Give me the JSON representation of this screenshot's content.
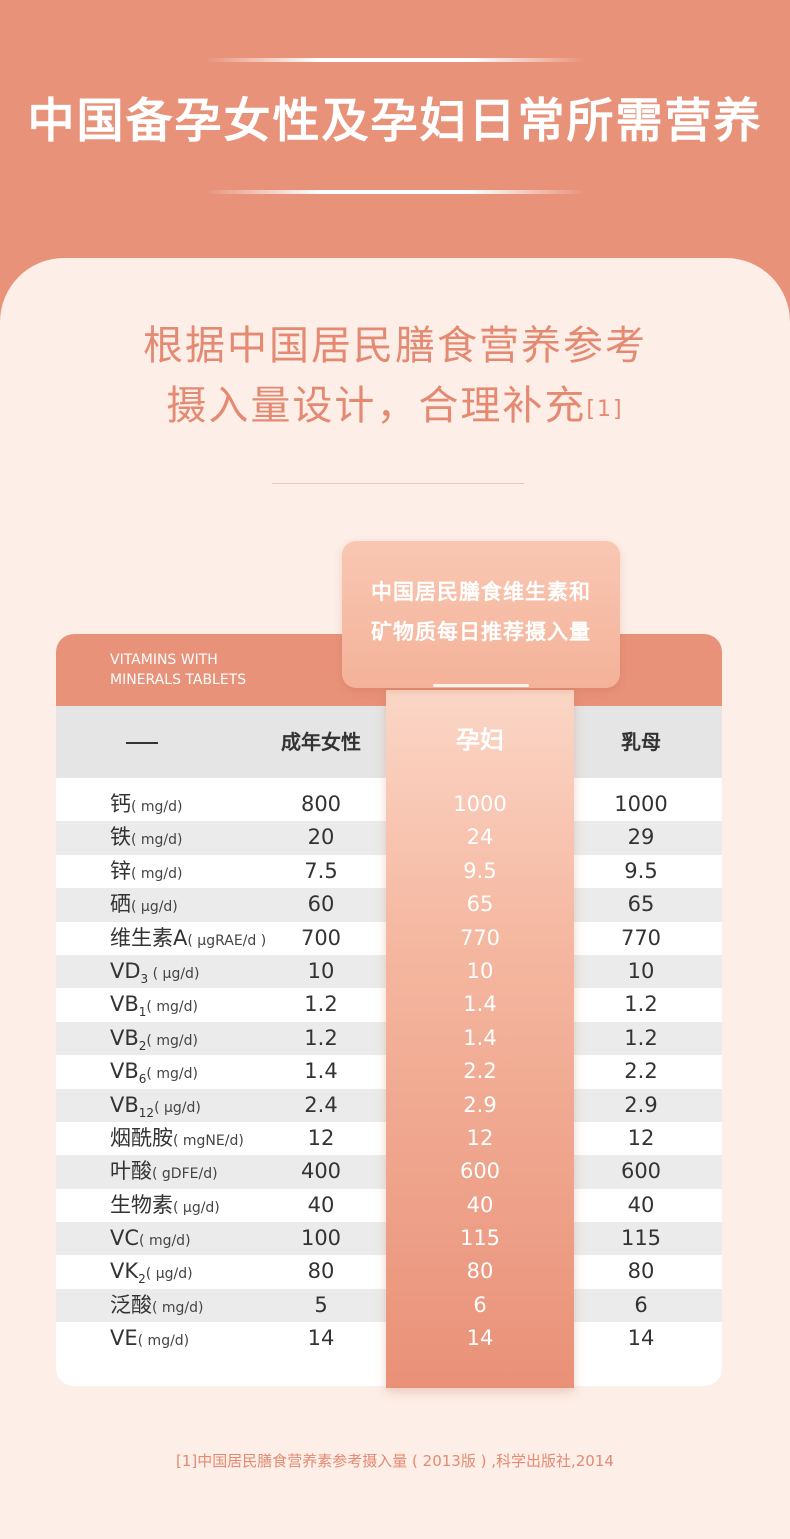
{
  "header": {
    "title": "中国备孕女性及孕妇日常所需营养"
  },
  "subtitle": {
    "line1": "根据中国居民膳食营养参考",
    "line2": "摄入量设计，合理补充",
    "ref": "[1]"
  },
  "card": {
    "tag_line1": "VITAMINS WITH",
    "tag_line2": "MINERALS TABLETS"
  },
  "highlight": {
    "tab_line1": "中国居民膳食维生素和",
    "tab_line2": "矿物质每日推荐摄入量"
  },
  "columns": {
    "adult": "成年女性",
    "pregnant": "孕妇",
    "nursing": "乳母"
  },
  "rows": [
    {
      "name": "钙",
      "sub": "",
      "unit": "( mg/d)",
      "adult": "800",
      "pregnant": "1000",
      "nursing": "1000"
    },
    {
      "name": "铁",
      "sub": "",
      "unit": "( mg/d)",
      "adult": "20",
      "pregnant": "24",
      "nursing": "29"
    },
    {
      "name": "锌",
      "sub": "",
      "unit": "( mg/d)",
      "adult": "7.5",
      "pregnant": "9.5",
      "nursing": "9.5"
    },
    {
      "name": "硒",
      "sub": "",
      "unit": "( μg/d)",
      "adult": "60",
      "pregnant": "65",
      "nursing": "65"
    },
    {
      "name": "维生素A",
      "sub": "",
      "unit": "( μgRAE/d )",
      "adult": "700",
      "pregnant": "770",
      "nursing": "770"
    },
    {
      "name": "VD",
      "sub": "3",
      "unit": " ( μg/d)",
      "adult": "10",
      "pregnant": "10",
      "nursing": "10"
    },
    {
      "name": "VB",
      "sub": "1",
      "unit": "( mg/d)",
      "adult": "1.2",
      "pregnant": "1.4",
      "nursing": "1.2"
    },
    {
      "name": "VB",
      "sub": "2",
      "unit": "( mg/d)",
      "adult": "1.2",
      "pregnant": "1.4",
      "nursing": "1.2"
    },
    {
      "name": "VB",
      "sub": "6",
      "unit": "( mg/d)",
      "adult": "1.4",
      "pregnant": "2.2",
      "nursing": "2.2"
    },
    {
      "name": "VB",
      "sub": "12",
      "unit": "( μg/d)",
      "adult": "2.4",
      "pregnant": "2.9",
      "nursing": "2.9"
    },
    {
      "name": "烟酰胺",
      "sub": "",
      "unit": "( mgNE/d)",
      "adult": "12",
      "pregnant": "12",
      "nursing": "12"
    },
    {
      "name": "叶酸",
      "sub": "",
      "unit": "( gDFE/d)",
      "adult": "400",
      "pregnant": "600",
      "nursing": "600"
    },
    {
      "name": "生物素",
      "sub": "",
      "unit": "( μg/d)",
      "adult": "40",
      "pregnant": "40",
      "nursing": "40"
    },
    {
      "name": "VC",
      "sub": "",
      "unit": "( mg/d)",
      "adult": "100",
      "pregnant": "115",
      "nursing": "115"
    },
    {
      "name": "VK",
      "sub": "2",
      "unit": "( μg/d)",
      "adult": "80",
      "pregnant": "80",
      "nursing": "80"
    },
    {
      "name": "泛酸",
      "sub": "",
      "unit": "( mg/d)",
      "adult": "5",
      "pregnant": "6",
      "nursing": "6"
    },
    {
      "name": "VE",
      "sub": "",
      "unit": "( mg/d)",
      "adult": "14",
      "pregnant": "14",
      "nursing": "14"
    }
  ],
  "footnote": "[1]中国居民膳食营养素参考摄入量 ( 2013版 ) ,科学出版社,2014"
}
